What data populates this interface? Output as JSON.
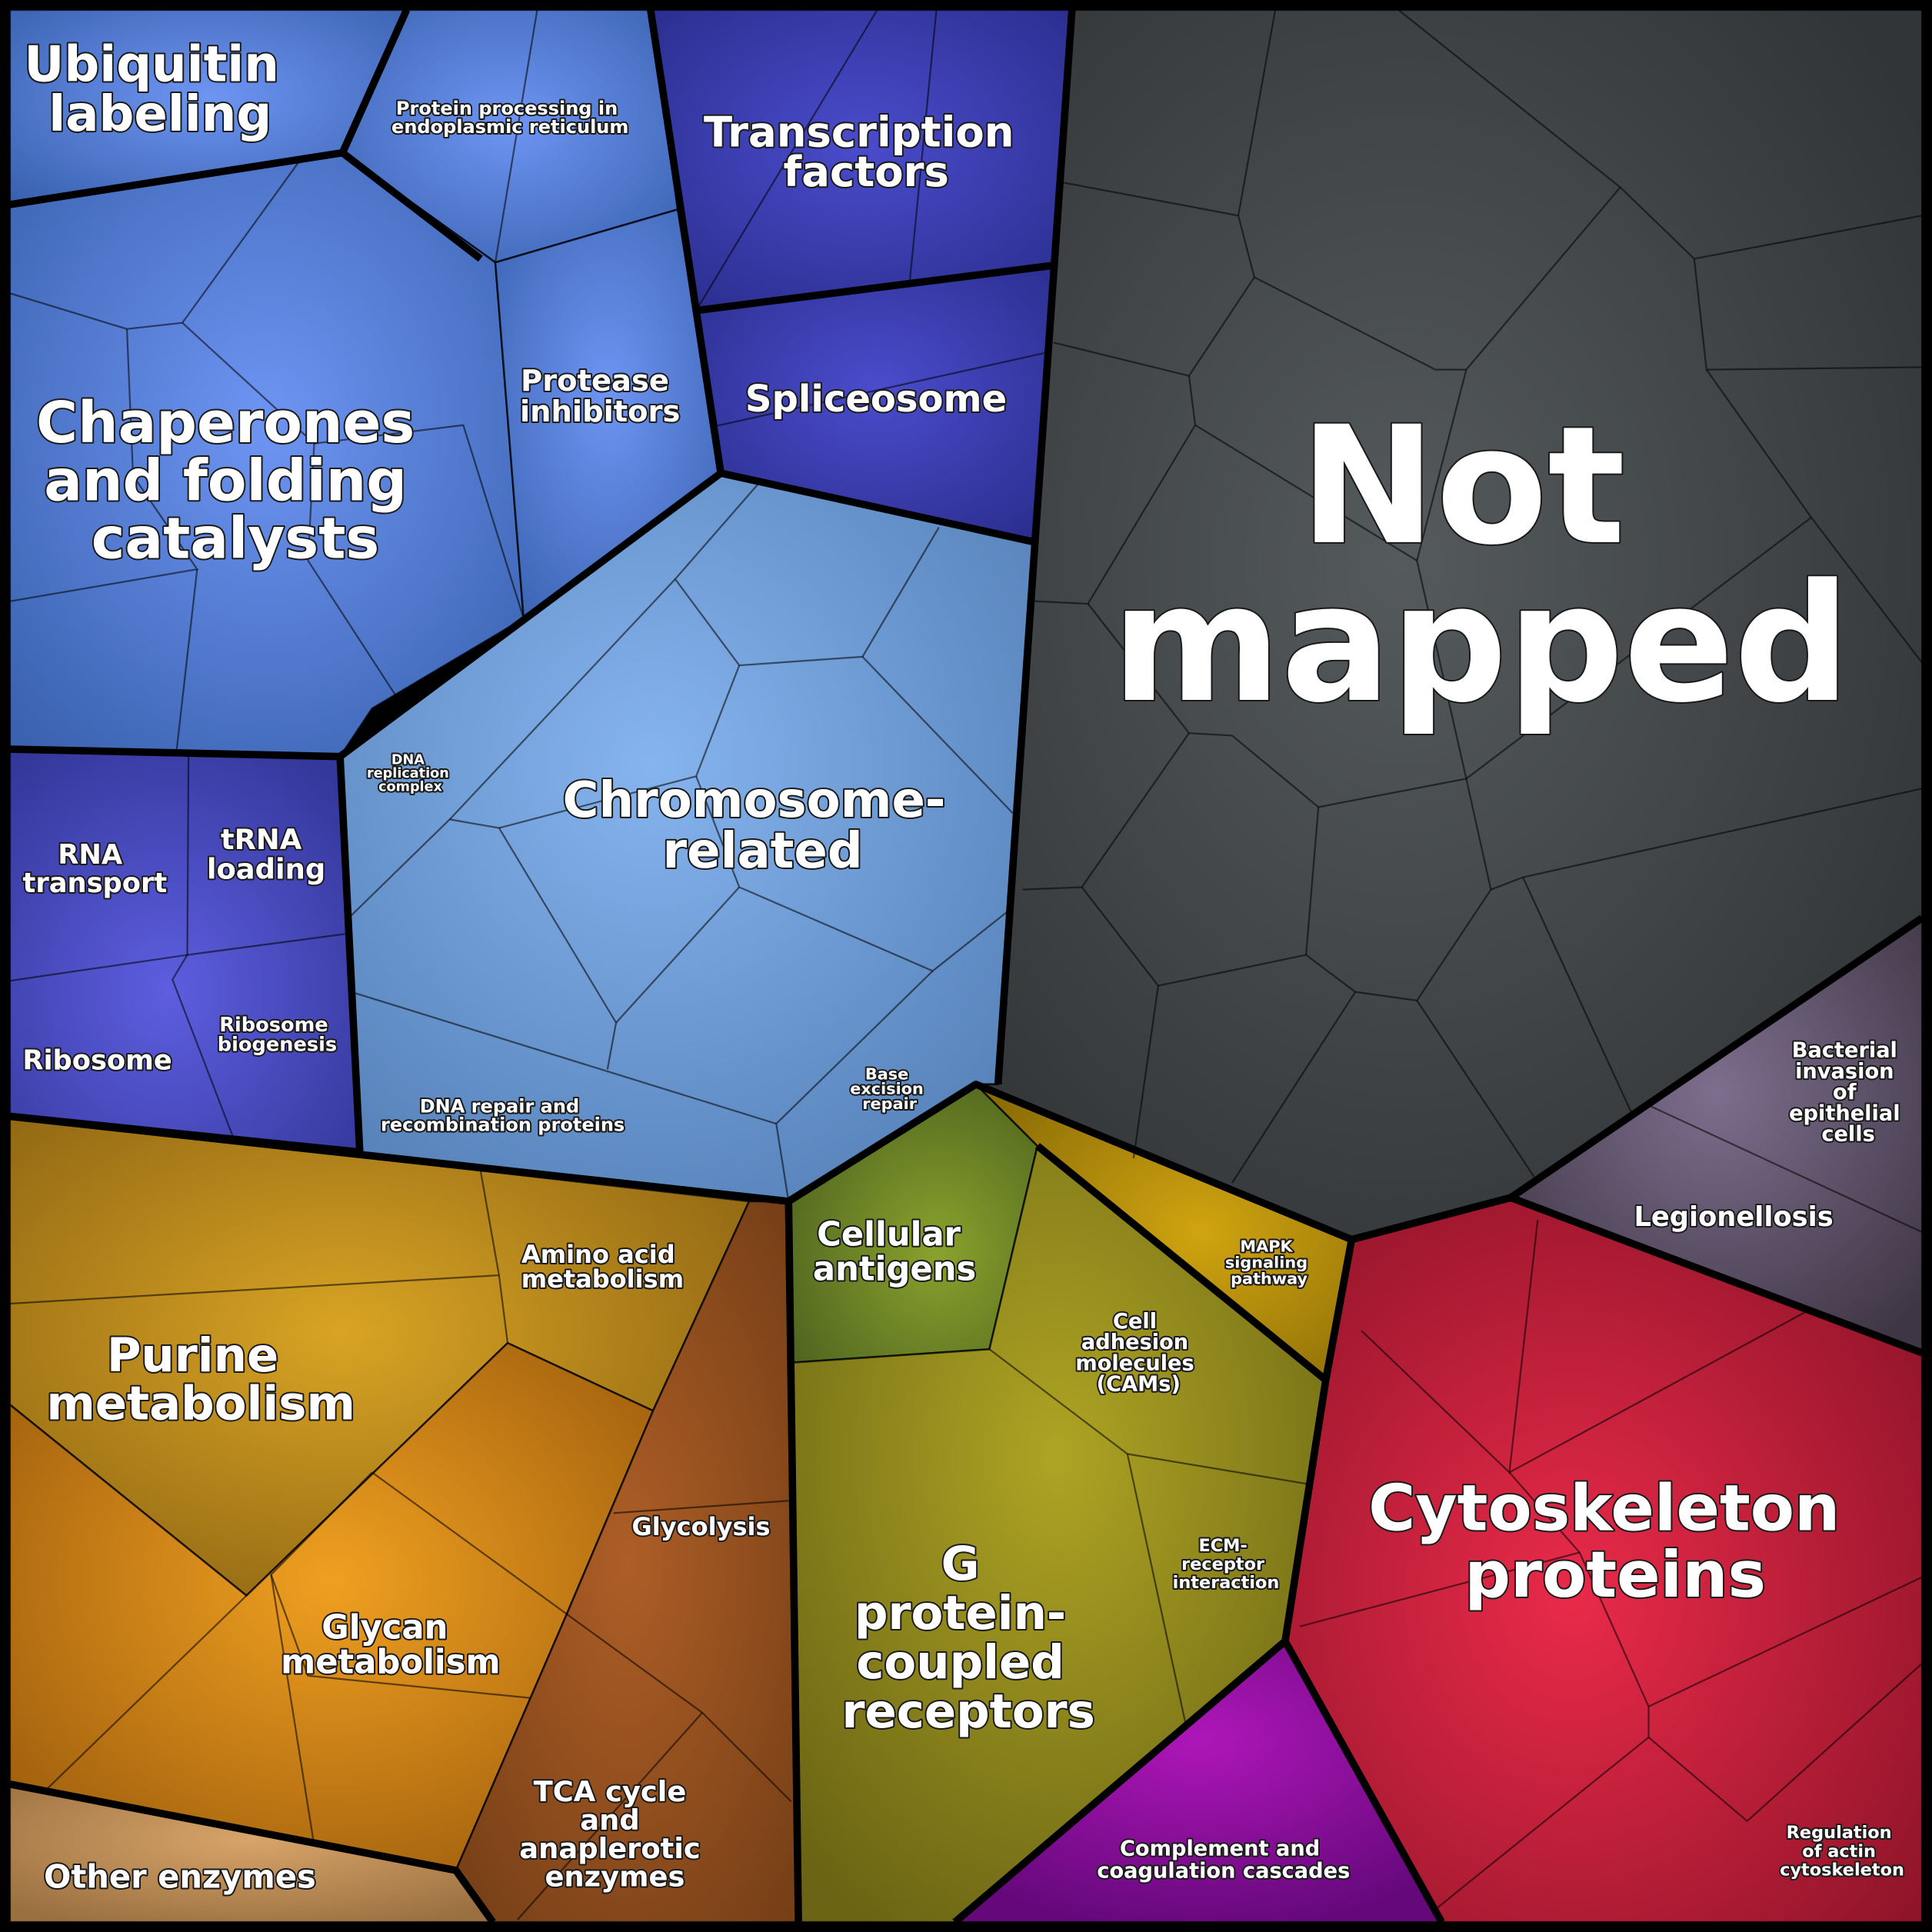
{
  "colors": {
    "ubiquitin": "#4a78c8",
    "transcription": "#3437a8",
    "chromosome": "#6a9ad4",
    "translation": "#4450b8",
    "not_mapped": "#3c3f41",
    "purine": "#b88a1c",
    "carbohydrate": "#c57a14",
    "glycolysis": "#8c4c1c",
    "other_enzymes": "#b08656",
    "cellular_antigens": "#5c7a2a",
    "gpcr": "#8a8a1a",
    "mapk": "#b58f0a",
    "bacterial": "#6a5a76",
    "cytoskeleton": "#c01e3e",
    "complement": "#8a1a9a"
  },
  "labels": {
    "ubiquitin_labeling": [
      "Ubiquitin",
      "labeling"
    ],
    "protein_processing": [
      "Protein processing in",
      "endoplasmic reticulum"
    ],
    "transcription_factors": [
      "Transcription",
      "factors"
    ],
    "protease_inhibitors": [
      "Protease",
      "inhibitors"
    ],
    "spliceosome": [
      "Spliceosome"
    ],
    "chaperones": [
      "Chaperones",
      "and folding",
      "catalysts"
    ],
    "not_mapped": [
      "Not",
      "mapped"
    ],
    "rna_transport": [
      "RNA",
      "transport"
    ],
    "trna_loading": [
      "tRNA",
      "loading"
    ],
    "dna_replication": [
      "DNA",
      "replication",
      "complex"
    ],
    "chromosome_related": [
      "Chromosome-",
      "related"
    ],
    "ribosome": [
      "Ribosome"
    ],
    "ribosome_biogenesis": [
      "Ribosome",
      "biogenesis"
    ],
    "base_excision_repair": [
      "Base",
      "excision",
      "repair"
    ],
    "dna_repair": [
      "DNA repair and",
      "recombination proteins"
    ],
    "bacterial_invasion": [
      "Bacterial",
      "invasion",
      "of",
      "epithelial",
      "cells"
    ],
    "legionellosis": [
      "Legionellosis"
    ],
    "cellular_antigens": [
      "Cellular",
      "antigens"
    ],
    "amino_acid_metabolism": [
      "Amino acid",
      "metabolism"
    ],
    "mapk_signaling": [
      "MAPK",
      "signaling",
      "pathway"
    ],
    "purine_metabolism": [
      "Purine",
      "metabolism"
    ],
    "cell_adhesion": [
      "Cell",
      "adhesion",
      "molecules",
      "(CAMs)"
    ],
    "cytoskeleton_proteins": [
      "Cytoskeleton",
      "proteins"
    ],
    "glycolysis": [
      "Glycolysis"
    ],
    "ecm_receptor": [
      "ECM-",
      "receptor",
      "interaction"
    ],
    "g_protein": [
      "G",
      "protein-",
      "coupled",
      "receptors"
    ],
    "glycan_metabolism": [
      "Glycan",
      "metabolism"
    ],
    "tca_cycle": [
      "TCA cycle",
      "and",
      "anaplerotic",
      "enzymes"
    ],
    "complement_coagulation": [
      "Complement and",
      "coagulation cascades"
    ],
    "regulation_actin": [
      "Regulation",
      "of actin",
      "cytoskeleton"
    ],
    "other_enzymes": [
      "Other enzymes"
    ]
  }
}
